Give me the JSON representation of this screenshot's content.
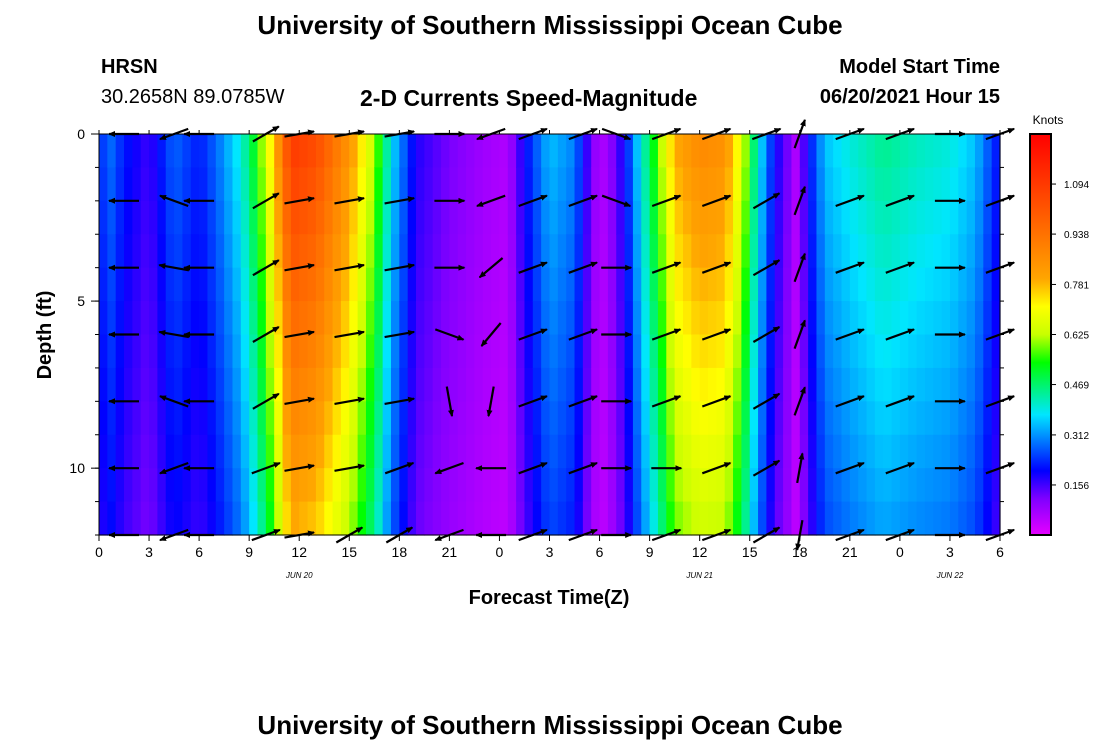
{
  "page": {
    "title_top": "University of Southern Mississippi Ocean Cube",
    "title_bottom": "University of Southern Mississippi Ocean Cube",
    "station_name": "HRSN",
    "station_coords": "30.2658N  89.0785W",
    "plot_title": "2-D Currents Speed-Magnitude",
    "model_label": "Model Start Time",
    "model_time": "06/20/2021 Hour 15"
  },
  "chart_data": {
    "type": "heatmap",
    "title": "2-D Currents Speed-Magnitude",
    "xlabel": "Forecast Time(Z)",
    "ylabel": "Depth (ft)",
    "colorbar_label": "Knots",
    "x_range_hours": [
      0,
      54
    ],
    "y_range_ft": [
      0,
      12
    ],
    "x_tick_labels": [
      "0",
      "3",
      "6",
      "9",
      "12",
      "15",
      "18",
      "21",
      "0",
      "3",
      "6",
      "9",
      "12",
      "15",
      "18",
      "21",
      "0",
      "3",
      "6"
    ],
    "y_ticks": [
      0,
      5,
      10
    ],
    "date_labels": [
      {
        "hour": 12,
        "text": "JUN 20"
      },
      {
        "hour": 36,
        "text": "JUN 21"
      },
      {
        "hour": 51,
        "text": "JUN 22"
      }
    ],
    "colorbar_ticks": [
      "0.156",
      "0.312",
      "0.469",
      "0.625",
      "0.781",
      "0.938",
      "1.094"
    ],
    "colorbar_range": [
      0,
      1.25
    ],
    "speed_at_hours": [
      [
        0,
        0.2
      ],
      [
        0.5,
        0.3
      ],
      [
        1.5,
        0.22
      ],
      [
        3,
        0.16
      ],
      [
        4.5,
        0.28
      ],
      [
        6,
        0.22
      ],
      [
        7,
        0.28
      ],
      [
        8.5,
        0.4
      ],
      [
        9.5,
        0.55
      ],
      [
        10.5,
        0.78
      ],
      [
        11.5,
        1.1
      ],
      [
        13,
        1.05
      ],
      [
        15,
        0.85
      ],
      [
        16.5,
        0.62
      ],
      [
        17.5,
        0.38
      ],
      [
        19,
        0.18
      ],
      [
        21,
        0.12
      ],
      [
        23,
        0.08
      ],
      [
        24.5,
        0.06
      ],
      [
        25.5,
        0.2
      ],
      [
        27,
        0.35
      ],
      [
        28.5,
        0.3
      ],
      [
        29.5,
        0.12
      ],
      [
        30,
        0.06
      ],
      [
        30.5,
        0.08
      ],
      [
        31.5,
        0.2
      ],
      [
        32.5,
        0.4
      ],
      [
        33.5,
        0.58
      ],
      [
        34.5,
        0.8
      ],
      [
        36,
        0.88
      ],
      [
        37.5,
        0.86
      ],
      [
        38.5,
        0.68
      ],
      [
        39.5,
        0.4
      ],
      [
        40.5,
        0.2
      ],
      [
        41.3,
        0.12
      ],
      [
        41.8,
        0.06
      ],
      [
        42.5,
        0.2
      ],
      [
        43.5,
        0.35
      ],
      [
        45,
        0.4
      ],
      [
        47,
        0.45
      ],
      [
        49,
        0.42
      ],
      [
        51,
        0.4
      ],
      [
        52.5,
        0.35
      ],
      [
        53.5,
        0.25
      ],
      [
        54,
        0.2
      ]
    ],
    "vector_hours": [
      1.5,
      4.5,
      6,
      10,
      12,
      15,
      18,
      21,
      23.5,
      26,
      29,
      31,
      34,
      37,
      40,
      42,
      45,
      48,
      51,
      54
    ],
    "vector_depths_ft": [
      0,
      2,
      4,
      6,
      8,
      10,
      12
    ],
    "vector_angles_deg": [
      [
        180,
        180,
        180,
        180,
        180,
        180,
        180
      ],
      [
        200,
        160,
        170,
        170,
        160,
        200,
        200
      ],
      [
        180,
        180,
        180,
        180,
        180,
        180,
        180
      ],
      [
        30,
        30,
        30,
        30,
        30,
        20,
        20
      ],
      [
        10,
        10,
        10,
        10,
        10,
        10,
        10
      ],
      [
        10,
        10,
        10,
        10,
        10,
        10,
        30
      ],
      [
        10,
        10,
        10,
        10,
        10,
        20,
        30
      ],
      [
        0,
        0,
        0,
        340,
        280,
        200,
        200
      ],
      [
        200,
        200,
        220,
        230,
        260,
        180,
        180
      ],
      [
        20,
        20,
        20,
        20,
        20,
        20,
        20
      ],
      [
        20,
        20,
        20,
        20,
        20,
        20,
        20
      ],
      [
        340,
        340,
        0,
        0,
        0,
        0,
        0
      ],
      [
        20,
        20,
        20,
        20,
        20,
        0,
        20
      ],
      [
        20,
        20,
        20,
        20,
        20,
        20,
        20
      ],
      [
        20,
        30,
        30,
        30,
        30,
        30,
        30
      ],
      [
        70,
        70,
        70,
        70,
        70,
        80,
        260
      ],
      [
        20,
        20,
        20,
        20,
        20,
        20,
        20
      ],
      [
        20,
        20,
        20,
        20,
        20,
        20,
        20
      ],
      [
        0,
        0,
        0,
        0,
        0,
        0,
        0
      ],
      [
        20,
        20,
        20,
        20,
        20,
        20,
        20
      ]
    ]
  }
}
